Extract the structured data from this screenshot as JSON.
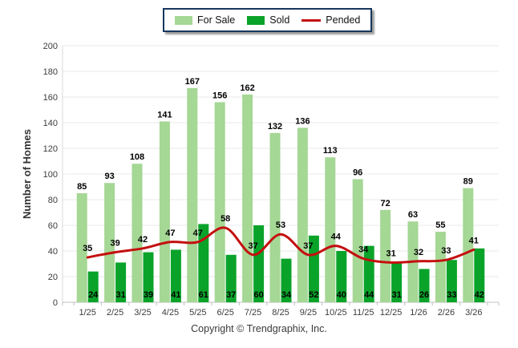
{
  "chart_data": {
    "type": "bar",
    "categories": [
      "1/25",
      "2/25",
      "3/25",
      "4/25",
      "5/25",
      "6/25",
      "7/25",
      "8/25",
      "9/25",
      "10/25",
      "11/25",
      "12/25",
      "1/26",
      "2/26",
      "3/26"
    ],
    "series": [
      {
        "name": "For Sale",
        "type": "bar",
        "color": "#A5D795",
        "values": [
          85,
          93,
          108,
          141,
          167,
          156,
          162,
          132,
          136,
          113,
          96,
          72,
          63,
          55,
          89
        ]
      },
      {
        "name": "Sold",
        "type": "bar",
        "color": "#0AA32A",
        "values": [
          24,
          31,
          39,
          41,
          61,
          37,
          60,
          34,
          52,
          40,
          44,
          31,
          26,
          33,
          42
        ]
      },
      {
        "name": "Pended",
        "type": "line",
        "color": "#C40F0F",
        "values": [
          35,
          39,
          42,
          47,
          47,
          58,
          37,
          53,
          37,
          44,
          34,
          31,
          32,
          33,
          41
        ]
      }
    ],
    "title": "",
    "xlabel": "",
    "ylabel": "Number of Homes",
    "ylim": [
      0,
      200
    ],
    "ytick_step": 20,
    "grid": true,
    "legend_position": "top",
    "grid_color": "#e8e8e8",
    "axis_color": "#c0c0c0",
    "tick_text_color": "#3c3c3c"
  },
  "footer": {
    "copyright": "Copyright © Trendgraphix, Inc."
  }
}
